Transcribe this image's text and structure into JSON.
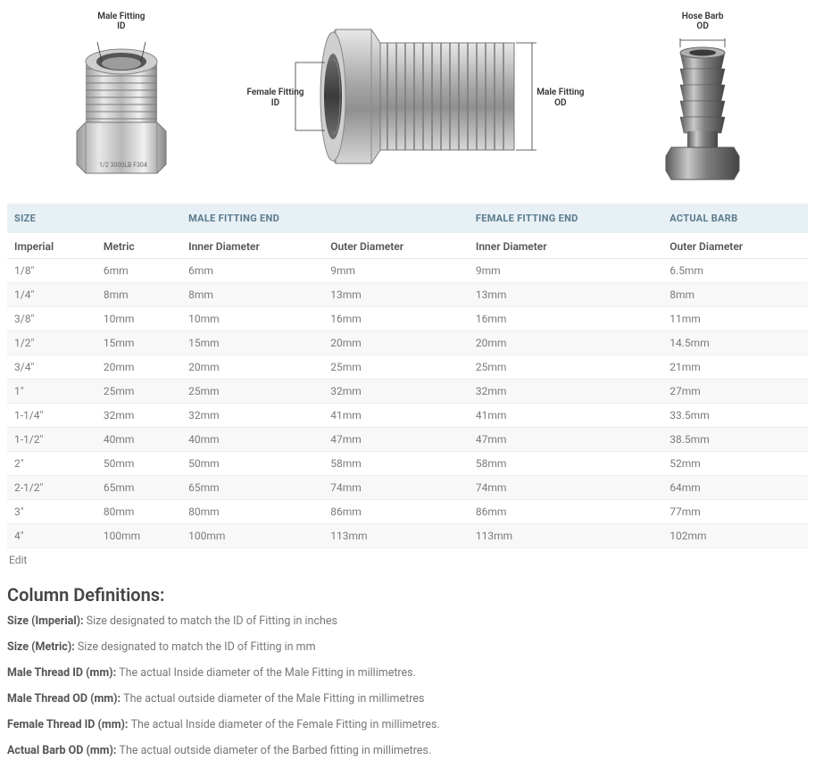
{
  "diagrams": {
    "male_id": {
      "title": "Male Fitting",
      "sub": "ID"
    },
    "female_id": {
      "title": "Female Fitting",
      "sub": "ID"
    },
    "male_od": {
      "title": "Male Fitting",
      "sub": "OD"
    },
    "barb": {
      "title": "Hose Barb",
      "sub": "OD"
    }
  },
  "table": {
    "group_headers": {
      "size": "SIZE",
      "male": "MALE FITTING END",
      "female": "FEMALE FITTING END",
      "barb": "ACTUAL BARB"
    },
    "sub_headers": {
      "imperial": "Imperial",
      "metric": "Metric",
      "inner_d": "Inner Diameter",
      "outer_d": "Outer Diameter",
      "f_inner_d": "Inner Diameter",
      "b_outer_d": "Outer Diameter"
    },
    "rows": [
      {
        "imperial": "1/8\"",
        "metric": "6mm",
        "m_id": "6mm",
        "m_od": "9mm",
        "f_id": "9mm",
        "b_od": "6.5mm"
      },
      {
        "imperial": "1/4\"",
        "metric": "8mm",
        "m_id": "8mm",
        "m_od": "13mm",
        "f_id": "13mm",
        "b_od": "8mm"
      },
      {
        "imperial": "3/8\"",
        "metric": "10mm",
        "m_id": "10mm",
        "m_od": "16mm",
        "f_id": "16mm",
        "b_od": "11mm"
      },
      {
        "imperial": "1/2\"",
        "metric": "15mm",
        "m_id": "15mm",
        "m_od": "20mm",
        "f_id": "20mm",
        "b_od": "14.5mm"
      },
      {
        "imperial": "3/4\"",
        "metric": "20mm",
        "m_id": "20mm",
        "m_od": "25mm",
        "f_id": "25mm",
        "b_od": "21mm"
      },
      {
        "imperial": "1\"",
        "metric": "25mm",
        "m_id": "25mm",
        "m_od": "32mm",
        "f_id": "32mm",
        "b_od": "27mm"
      },
      {
        "imperial": "1-1/4\"",
        "metric": "32mm",
        "m_id": "32mm",
        "m_od": "41mm",
        "f_id": "41mm",
        "b_od": "33.5mm"
      },
      {
        "imperial": "1-1/2\"",
        "metric": "40mm",
        "m_id": "40mm",
        "m_od": "47mm",
        "f_id": "47mm",
        "b_od": "38.5mm"
      },
      {
        "imperial": "2\"",
        "metric": "50mm",
        "m_id": "50mm",
        "m_od": "58mm",
        "f_id": "58mm",
        "b_od": "52mm"
      },
      {
        "imperial": "2-1/2\"",
        "metric": "65mm",
        "m_id": "65mm",
        "m_od": "74mm",
        "f_id": "74mm",
        "b_od": "64mm"
      },
      {
        "imperial": "3\"",
        "metric": "80mm",
        "m_id": "80mm",
        "m_od": "86mm",
        "f_id": "86mm",
        "b_od": "77mm"
      },
      {
        "imperial": "4\"",
        "metric": "100mm",
        "m_id": "100mm",
        "m_od": "113mm",
        "f_id": "113mm",
        "b_od": "102mm"
      }
    ],
    "edit": "Edit"
  },
  "definitions": {
    "title": "Column Definitions:",
    "items": [
      {
        "label": "Size (Imperial):",
        "text": "Size designated to match the ID of Fitting in inches"
      },
      {
        "label": "Size (Metric):",
        "text": "Size designated to match the ID of Fitting in mm"
      },
      {
        "label": "Male Thread ID (mm):",
        "text": "The actual Inside diameter of the Male Fitting in millimetres."
      },
      {
        "label": "Male Thread OD (mm):",
        "text": "The actual outside diameter of the Male Fitting in millimetres"
      },
      {
        "label": "Female Thread ID (mm):",
        "text": "The actual Inside diameter of the Female Fitting in millimetres."
      },
      {
        "label": "Actual Barb OD (mm):",
        "text": "The actual outside diameter of the Barbed fitting in millimetres."
      }
    ]
  },
  "colors": {
    "header_bg": "#e7f0f5",
    "header_text": "#5b7a8c",
    "row_alt_bg": "#f8f8f8",
    "border": "#eeeeee",
    "metal_light": "#dcdcdc",
    "metal_mid": "#a8a8a8",
    "metal_dark": "#6e6e6e"
  }
}
